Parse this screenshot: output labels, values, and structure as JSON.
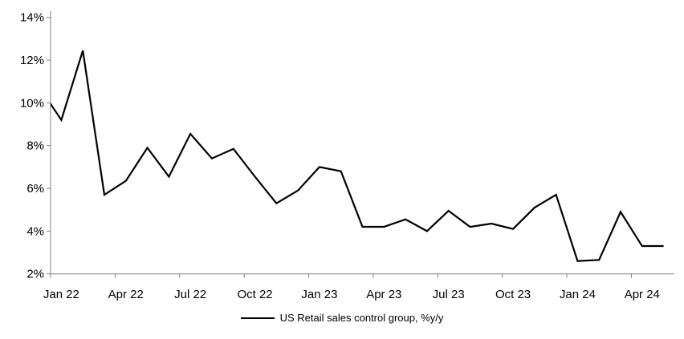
{
  "chart_data": {
    "type": "line",
    "title": "",
    "legend": "US Retail sales control group, %y/y",
    "legend_position": "bottom",
    "grid": "off",
    "background": "#ffffff",
    "line_color": "#000000",
    "axis_color": "#808080",
    "text_color": "#000000",
    "ylim": [
      2,
      14
    ],
    "yticks": [
      2,
      4,
      6,
      8,
      10,
      12,
      14
    ],
    "ytick_suffix": "%",
    "xtick_every_months": 3,
    "xtick_labels": [
      "Jan 22",
      "Apr 22",
      "Jul 22",
      "Oct 22",
      "Jan 23",
      "Apr 23",
      "Jul 23",
      "Oct 23",
      "Jan 24",
      "Apr 24"
    ],
    "x": [
      "Jan 22",
      "Feb 22",
      "Mar 22",
      "Apr 22",
      "May 22",
      "Jun 22",
      "Jul 22",
      "Aug 22",
      "Sep 22",
      "Oct 22",
      "Nov 22",
      "Dec 22",
      "Jan 23",
      "Feb 23",
      "Mar 23",
      "Apr 23",
      "May 23",
      "Jun 23",
      "Jul 23",
      "Aug 23",
      "Sep 23",
      "Oct 23",
      "Nov 23",
      "Dec 23",
      "Jan 24",
      "Feb 24",
      "Mar 24",
      "Apr 24",
      "May 24"
    ],
    "values": [
      9.2,
      12.45,
      5.7,
      6.35,
      7.9,
      6.55,
      8.55,
      7.4,
      7.85,
      6.55,
      5.3,
      5.9,
      7.0,
      6.8,
      4.2,
      4.2,
      4.55,
      4.0,
      4.95,
      4.2,
      4.35,
      4.1,
      5.1,
      5.7,
      2.6,
      2.65,
      4.9,
      3.3,
      3.3
    ],
    "clipped_lead_in": {
      "label": "Dec 21",
      "value": 10.7
    }
  }
}
